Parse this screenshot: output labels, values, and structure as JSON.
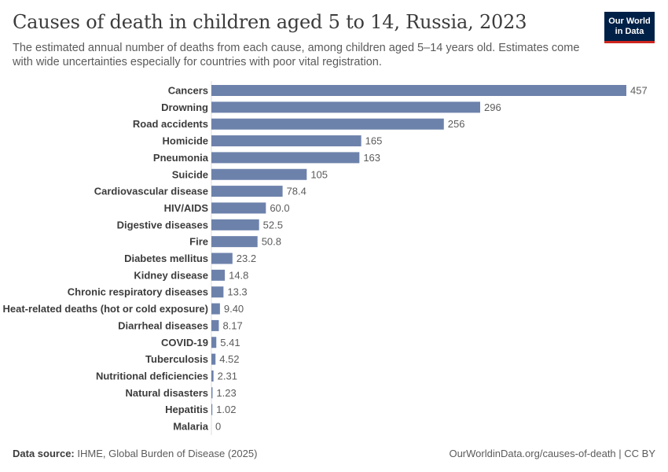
{
  "header": {
    "title": "Causes of death in children aged 5 to 14, Russia, 2023",
    "subtitle": "The estimated annual number of deaths from each cause, among children aged 5–14 years old. Estimates come with wide uncertainties especially for countries with poor vital registration.",
    "logo_line1": "Our World",
    "logo_line2": "in Data"
  },
  "footer": {
    "source_label": "Data source:",
    "source_text": "IHME, Global Burden of Disease (2025)",
    "url_text": "OurWorldinData.org/causes-of-death | CC BY"
  },
  "colors": {
    "bar": "#6d82ab",
    "axis": "#dddddd",
    "logo_bg": "#002147",
    "logo_accent": "#ce261e"
  },
  "chart_data": {
    "type": "bar",
    "orientation": "horizontal",
    "categories": [
      "Cancers",
      "Drowning",
      "Road accidents",
      "Homicide",
      "Pneumonia",
      "Suicide",
      "Cardiovascular disease",
      "HIV/AIDS",
      "Digestive diseases",
      "Fire",
      "Diabetes mellitus",
      "Kidney disease",
      "Chronic respiratory diseases",
      "Heat-related deaths (hot or cold exposure)",
      "Diarrheal diseases",
      "COVID-19",
      "Tuberculosis",
      "Nutritional deficiencies",
      "Natural disasters",
      "Hepatitis",
      "Malaria"
    ],
    "values": [
      457,
      296,
      256,
      165,
      163,
      105,
      78.4,
      60.0,
      52.5,
      50.8,
      23.2,
      14.8,
      13.3,
      9.4,
      8.17,
      5.41,
      4.52,
      2.31,
      1.23,
      1.02,
      0
    ],
    "value_labels": [
      "457",
      "296",
      "256",
      "165",
      "163",
      "105",
      "78.4",
      "60.0",
      "52.5",
      "50.8",
      "23.2",
      "14.8",
      "13.3",
      "9.40",
      "8.17",
      "5.41",
      "4.52",
      "2.31",
      "1.23",
      "1.02",
      "0"
    ],
    "xlim": [
      0,
      457
    ],
    "grid": false,
    "legend": "none"
  }
}
